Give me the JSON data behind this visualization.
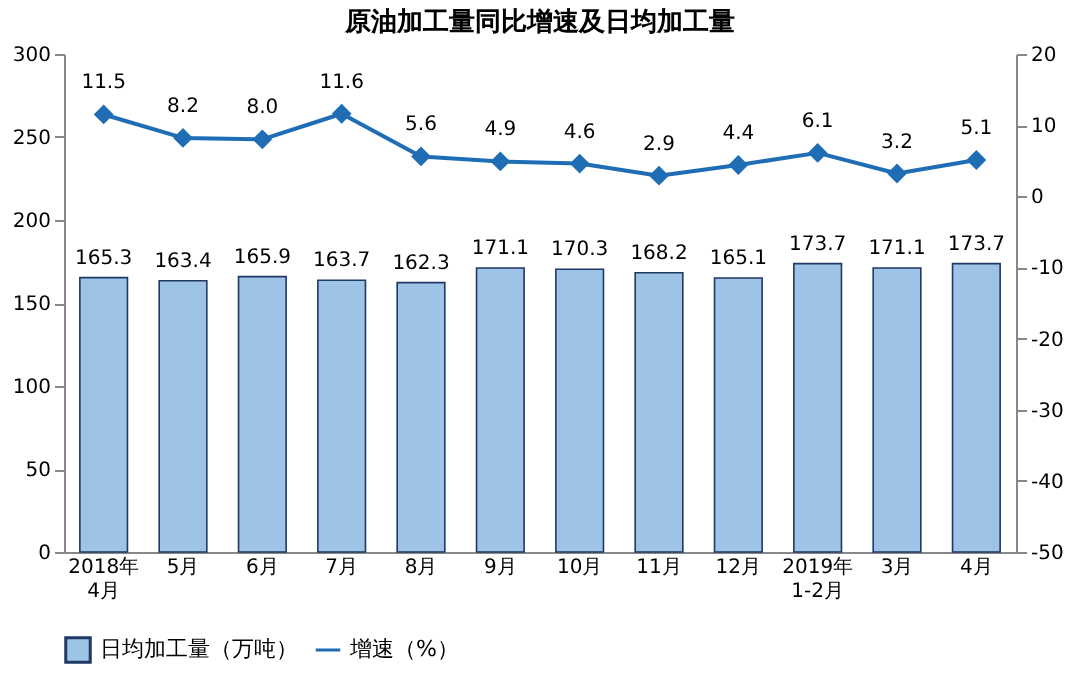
{
  "chart_data": {
    "type": "bar",
    "title": "原油加工量同比增速及日均加工量",
    "categories": [
      "2018年\n4月",
      "5月",
      "6月",
      "7月",
      "8月",
      "9月",
      "10月",
      "11月",
      "12月",
      "2019年\n1-2月",
      "3月",
      "4月"
    ],
    "series": [
      {
        "name": "日均加工量（万吨）",
        "type": "bar",
        "color": "#9dc3e6",
        "values": [
          165.3,
          163.4,
          165.9,
          163.7,
          162.3,
          171.1,
          170.3,
          168.2,
          165.1,
          173.7,
          171.1,
          173.7
        ],
        "value_labels": [
          "165.3",
          "163.4",
          "165.9",
          "163.7",
          "162.3",
          "171.1",
          "170.3",
          "168.2",
          "165.1",
          "173.7",
          "171.1",
          "173.7"
        ]
      },
      {
        "name": "增速（%）",
        "type": "line",
        "axis": "y2",
        "color": "#1f6db5",
        "marker": "diamond",
        "values": [
          11.5,
          8.2,
          8.0,
          11.6,
          5.6,
          4.9,
          4.6,
          2.9,
          4.4,
          6.1,
          3.2,
          5.1
        ],
        "value_labels": [
          "11.5",
          "8.2",
          "8.0",
          "11.6",
          "5.6",
          "4.9",
          "4.6",
          "2.9",
          "4.4",
          "6.1",
          "3.2",
          "5.1"
        ]
      }
    ],
    "ylim": [
      0,
      300
    ],
    "yticks": [
      0,
      50,
      100,
      150,
      200,
      250,
      300
    ],
    "y2lim": [
      -50,
      20
    ],
    "y2ticks": [
      -50,
      -40,
      -30,
      -20,
      -10,
      0,
      10,
      20
    ],
    "data_labels": true,
    "grid": false,
    "legend": "bottom"
  }
}
